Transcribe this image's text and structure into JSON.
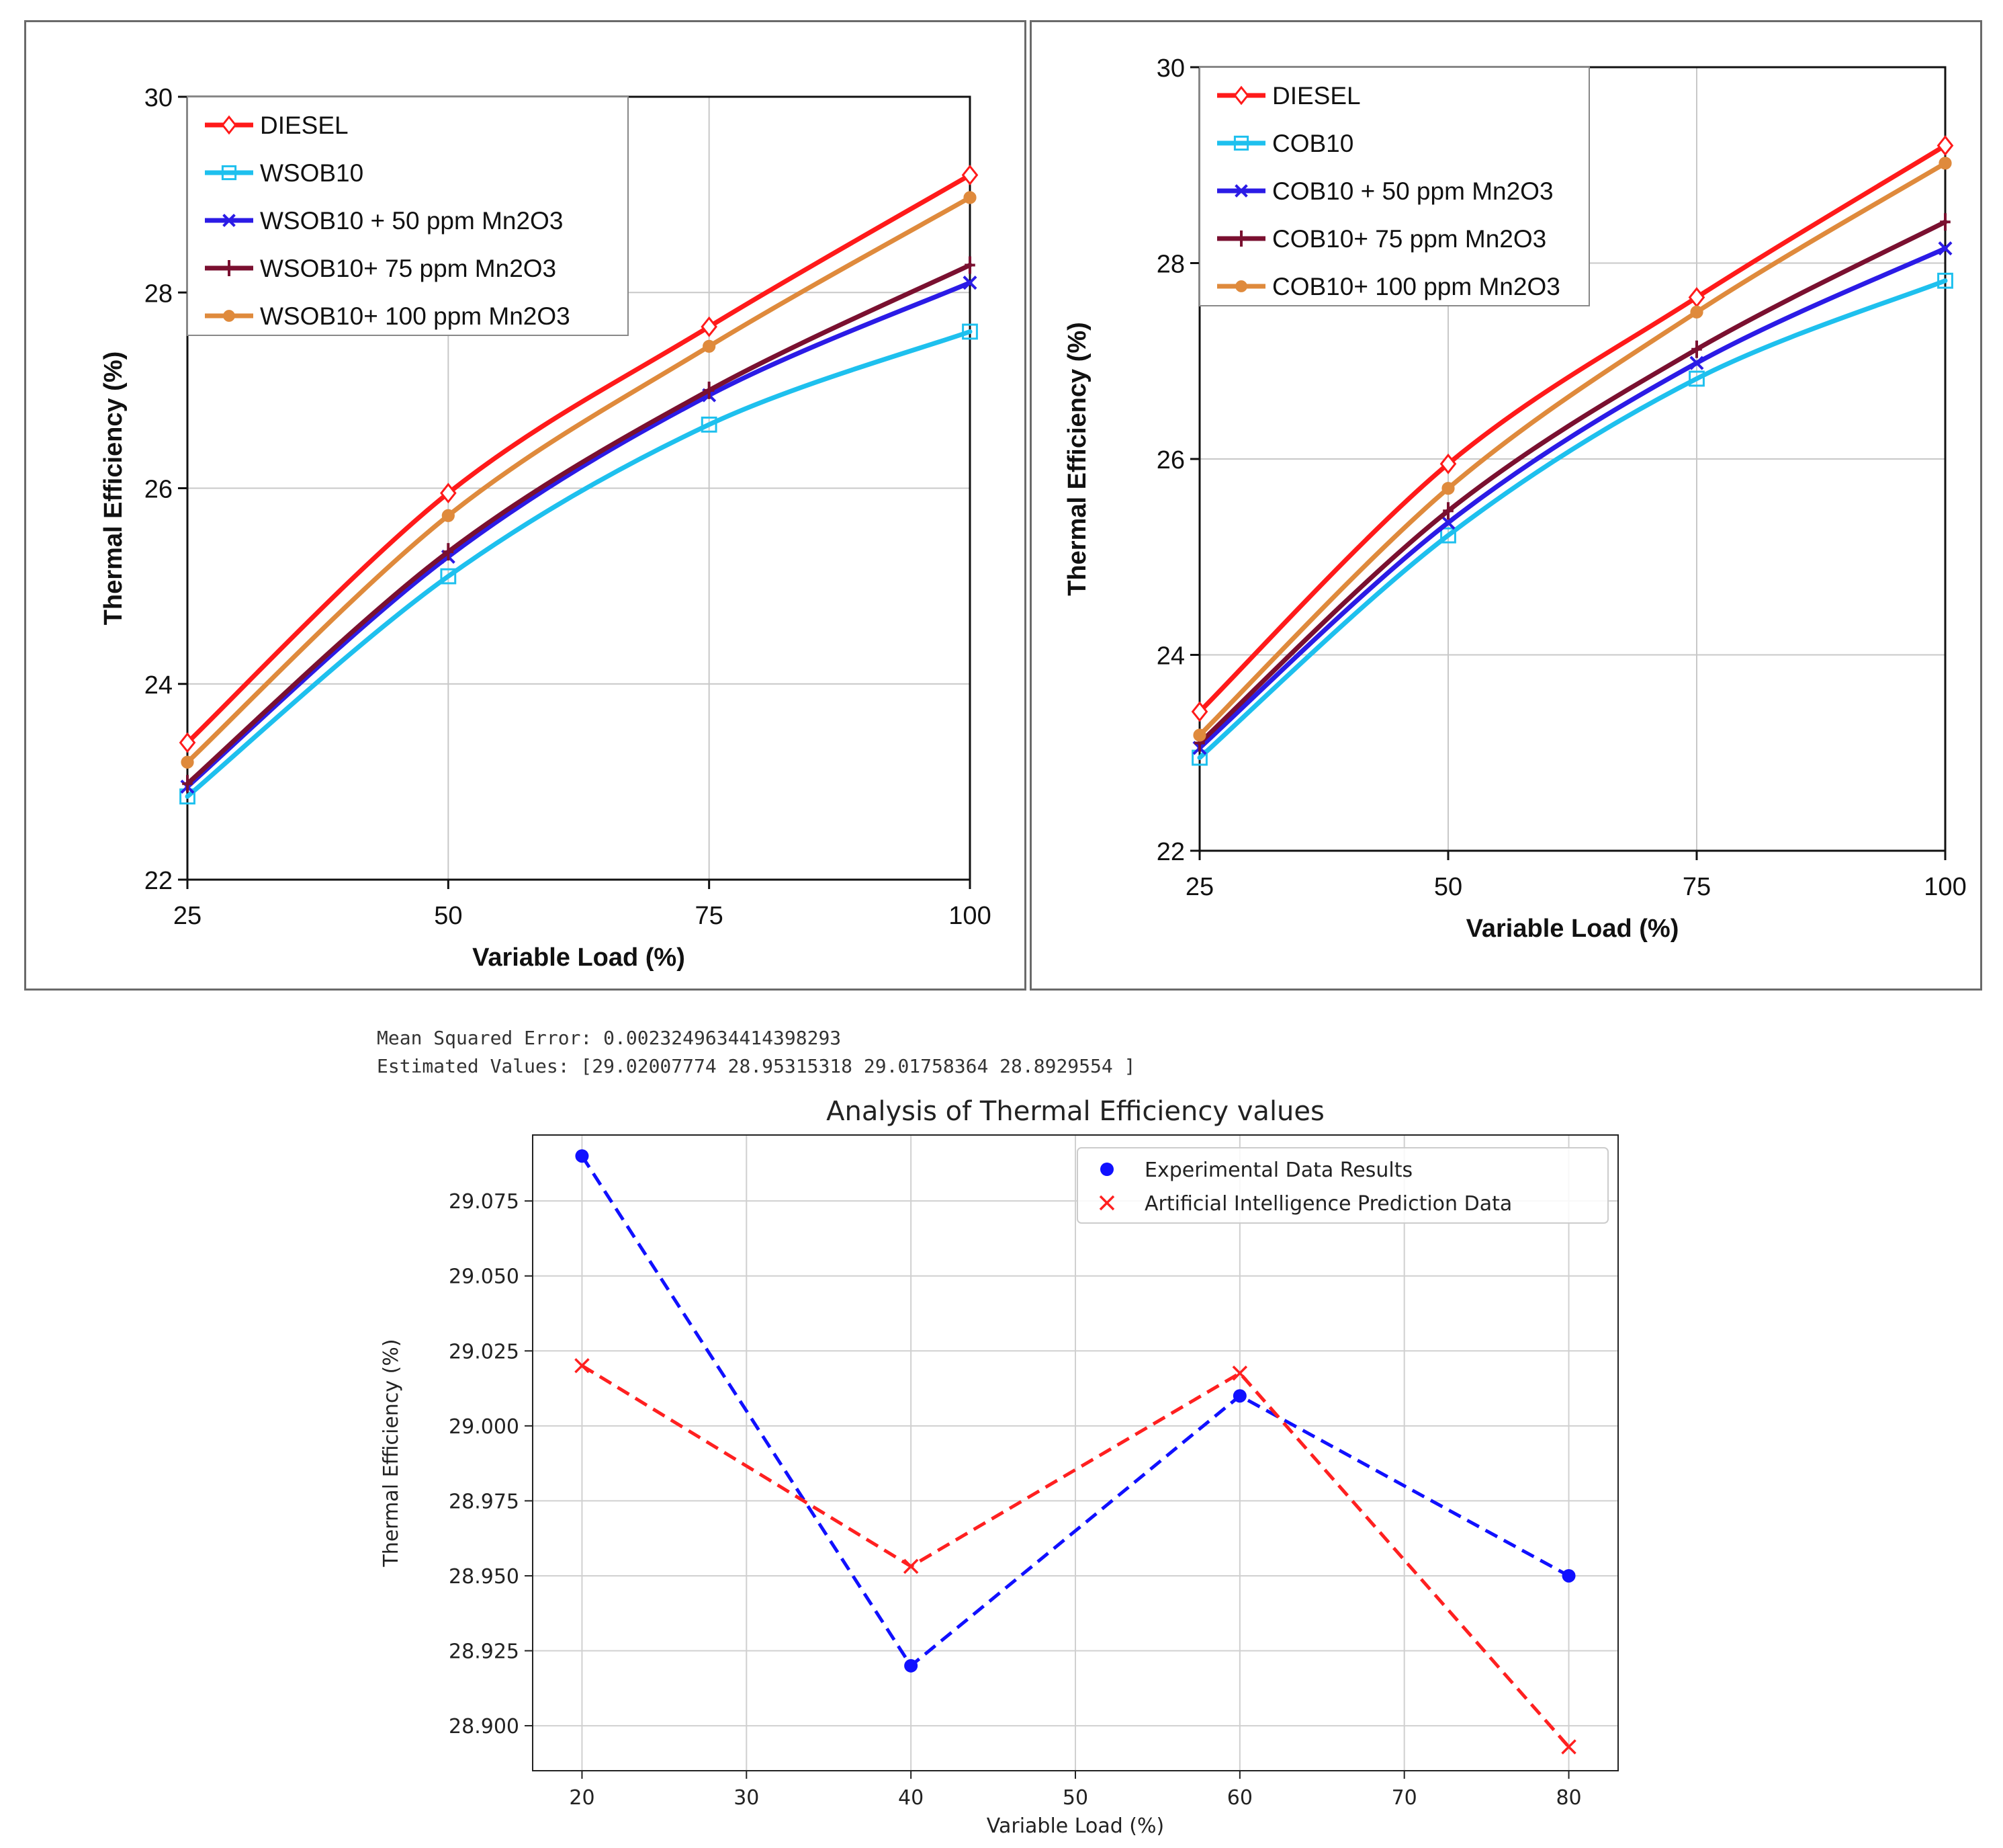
{
  "colors": {
    "diesel": "#ff1a1a",
    "blend": "#1ec0ee",
    "mn50": "#2b1be6",
    "mn75": "#7a1030",
    "mn100": "#df8a3c",
    "experimental": "#1010ff",
    "prediction": "#ff2020"
  },
  "console": {
    "mse_line": "Mean Squared Error: 0.0023249634414398293",
    "estimated_line": "Estimated Values: [29.02007774 28.95315318 29.01758364 28.8929554 ]"
  },
  "chart_data": [
    {
      "id": "left",
      "type": "line",
      "title": "",
      "xlabel": "Variable Load (%)",
      "ylabel": "Thermal Efficiency (%)",
      "x": [
        25,
        50,
        75,
        100
      ],
      "xticks": [
        "25",
        "50",
        "75",
        "100"
      ],
      "ylim": [
        22,
        30
      ],
      "yticks": [
        "22",
        "24",
        "26",
        "28",
        "30"
      ],
      "grid": true,
      "legend_position": "top-left",
      "series": [
        {
          "name": "DIESEL",
          "values": [
            23.4,
            25.95,
            27.65,
            29.2
          ],
          "color": "#ff1a1a",
          "marker": "diamond"
        },
        {
          "name": "WSOB10",
          "values": [
            22.85,
            25.1,
            26.65,
            27.6
          ],
          "color": "#1ec0ee",
          "marker": "square"
        },
        {
          "name": "WSOB10 + 50 ppm Mn2O3",
          "values": [
            22.95,
            25.3,
            26.95,
            28.1
          ],
          "color": "#2b1be6",
          "marker": "x"
        },
        {
          "name": "WSOB10+ 75 ppm Mn2O3",
          "values": [
            22.98,
            25.35,
            27.0,
            28.28
          ],
          "color": "#7a1030",
          "marker": "plus"
        },
        {
          "name": "WSOB10+ 100 ppm Mn2O3",
          "values": [
            23.2,
            25.72,
            27.45,
            28.97
          ],
          "color": "#df8a3c",
          "marker": "circle"
        }
      ]
    },
    {
      "id": "right",
      "type": "line",
      "title": "",
      "xlabel": "Variable Load (%)",
      "ylabel": "Thermal Efficiency (%)",
      "x": [
        25,
        50,
        75,
        100
      ],
      "xticks": [
        "25",
        "50",
        "75",
        "100"
      ],
      "ylim": [
        22,
        30
      ],
      "yticks": [
        "22",
        "24",
        "26",
        "28",
        "30"
      ],
      "grid": true,
      "legend_position": "top-left",
      "series": [
        {
          "name": "DIESEL",
          "values": [
            23.42,
            25.95,
            27.65,
            29.2
          ],
          "color": "#ff1a1a",
          "marker": "diamond"
        },
        {
          "name": "COB10",
          "values": [
            22.95,
            25.22,
            26.82,
            27.82
          ],
          "color": "#1ec0ee",
          "marker": "square"
        },
        {
          "name": "COB10 + 50 ppm Mn2O3",
          "values": [
            23.05,
            25.35,
            26.98,
            28.15
          ],
          "color": "#2b1be6",
          "marker": "x"
        },
        {
          "name": "COB10+ 75 ppm Mn2O3",
          "values": [
            23.1,
            25.47,
            27.12,
            28.42
          ],
          "color": "#7a1030",
          "marker": "plus"
        },
        {
          "name": "COB10+ 100 ppm Mn2O3",
          "values": [
            23.18,
            25.7,
            27.5,
            29.02
          ],
          "color": "#df8a3c",
          "marker": "circle"
        }
      ]
    },
    {
      "id": "bottom",
      "type": "line",
      "title": "Analysis of Thermal Efficiency values",
      "xlabel": "Variable Load (%)",
      "ylabel": "Thermal Efficiency (%)",
      "xlim": [
        17,
        83
      ],
      "xticks": [
        "20",
        "30",
        "40",
        "50",
        "60",
        "70",
        "80"
      ],
      "ylim": [
        28.885,
        29.097
      ],
      "yticks": [
        "28.900",
        "28.925",
        "28.950",
        "28.975",
        "29.000",
        "29.025",
        "29.050",
        "29.075"
      ],
      "grid": true,
      "legend_position": "top-right",
      "series": [
        {
          "name": "Experimental Data Results",
          "x": [
            20,
            40,
            60,
            80
          ],
          "values": [
            29.09,
            28.92,
            29.01,
            28.95
          ],
          "color": "#1010ff",
          "marker": "circle"
        },
        {
          "name": "Artificial Intelligence Prediction Data",
          "x": [
            20,
            40,
            60,
            80
          ],
          "values": [
            29.02007774,
            28.95315318,
            29.01758364,
            28.8929554
          ],
          "color": "#ff2020",
          "marker": "x"
        }
      ]
    }
  ]
}
